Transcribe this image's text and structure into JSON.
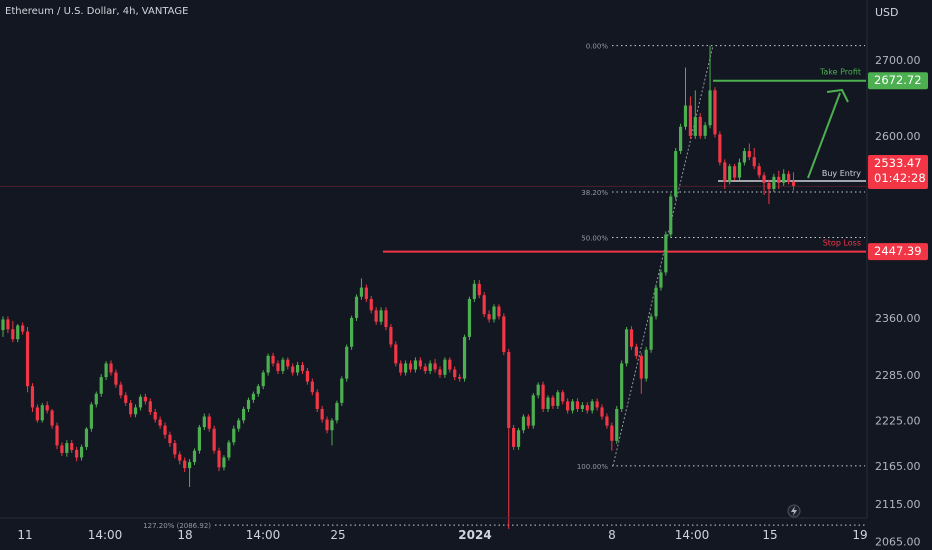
{
  "header": {
    "symbol_line": "Ethereum / U.S. Dollar, 4h, VANTAGE"
  },
  "price_axis": {
    "currency": "USD"
  },
  "chart_data": {
    "type": "candlestick",
    "ylim": [
      2010,
      2760
    ],
    "y_ticks": [
      "2700.00",
      "2600.00",
      "2360.00",
      "2285.00",
      "2225.00",
      "2165.00",
      "2115.00",
      "2065.00"
    ],
    "x_ticks": [
      "11",
      "14:00",
      "18",
      "14:00",
      "25",
      "2024",
      "8",
      "14:00",
      "15",
      "19"
    ],
    "colors": {
      "up": "#4caf50",
      "down": "#f23645",
      "background": "#131722",
      "grid_line": "#d1d4dc",
      "current_price": "#f23645",
      "take_profit": "#4caf50",
      "stop_loss": "#f23645",
      "buy_entry": "#d1d4dc"
    },
    "fib_levels": [
      {
        "label": "0.00%",
        "price": 2719
      },
      {
        "label": "38.20%",
        "price": 2526
      },
      {
        "label": "50.00%",
        "price": 2466
      },
      {
        "label": "100.00%",
        "price": 2165
      },
      {
        "label": "127.20% (2086.92)",
        "price": 2086.92
      }
    ],
    "levels": {
      "take_profit": {
        "label": "Take Profit",
        "price": "2672.72",
        "value": 2672.72
      },
      "buy_entry": {
        "label": "Buy Entry",
        "value": 2526
      },
      "stop_loss": {
        "label": "Stop Loss",
        "price": "2447.39",
        "value": 2447.39
      },
      "current": {
        "price": "2533.47",
        "countdown": "01:42:28",
        "value": 2533.47
      }
    },
    "candles": [
      [
        2344,
        2358,
        2335,
        2362
      ],
      [
        2358,
        2345,
        2340,
        2362
      ],
      [
        2345,
        2332,
        2328,
        2356
      ],
      [
        2332,
        2350,
        2328,
        2352
      ],
      [
        2350,
        2342,
        2338,
        2354
      ],
      [
        2342,
        2270,
        2262,
        2348
      ],
      [
        2270,
        2242,
        2236,
        2274
      ],
      [
        2242,
        2225,
        2222,
        2246
      ],
      [
        2225,
        2245,
        2222,
        2248
      ],
      [
        2245,
        2238,
        2234,
        2250
      ],
      [
        2238,
        2218,
        2214,
        2240
      ],
      [
        2218,
        2192,
        2187,
        2222
      ],
      [
        2192,
        2182,
        2178,
        2196
      ],
      [
        2182,
        2195,
        2177,
        2199
      ],
      [
        2195,
        2186,
        2182,
        2199
      ],
      [
        2186,
        2176,
        2171,
        2190
      ],
      [
        2176,
        2190,
        2172,
        2193
      ],
      [
        2190,
        2214,
        2186,
        2216
      ],
      [
        2214,
        2246,
        2210,
        2249
      ],
      [
        2246,
        2260,
        2242,
        2263
      ],
      [
        2260,
        2282,
        2256,
        2286
      ],
      [
        2282,
        2300,
        2278,
        2303
      ],
      [
        2300,
        2288,
        2284,
        2304
      ],
      [
        2288,
        2272,
        2268,
        2292
      ],
      [
        2272,
        2258,
        2254,
        2276
      ],
      [
        2258,
        2248,
        2244,
        2262
      ],
      [
        2248,
        2233,
        2229,
        2252
      ],
      [
        2233,
        2242,
        2229,
        2246
      ],
      [
        2242,
        2256,
        2238,
        2259
      ],
      [
        2256,
        2250,
        2246,
        2260
      ],
      [
        2250,
        2236,
        2232,
        2254
      ],
      [
        2236,
        2226,
        2222,
        2240
      ],
      [
        2226,
        2218,
        2214,
        2230
      ],
      [
        2218,
        2206,
        2201,
        2222
      ],
      [
        2206,
        2195,
        2190,
        2210
      ],
      [
        2195,
        2180,
        2175,
        2199
      ],
      [
        2180,
        2172,
        2167,
        2184
      ],
      [
        2172,
        2162,
        2157,
        2176
      ],
      [
        2162,
        2170,
        2137,
        2174
      ],
      [
        2170,
        2185,
        2166,
        2188
      ],
      [
        2185,
        2216,
        2181,
        2219
      ],
      [
        2216,
        2230,
        2212,
        2234
      ],
      [
        2230,
        2214,
        2210,
        2234
      ],
      [
        2214,
        2185,
        2181,
        2218
      ],
      [
        2185,
        2163,
        2158,
        2189
      ],
      [
        2163,
        2176,
        2159,
        2179
      ],
      [
        2176,
        2196,
        2172,
        2199
      ],
      [
        2196,
        2214,
        2192,
        2218
      ],
      [
        2214,
        2225,
        2210,
        2228
      ],
      [
        2225,
        2240,
        2221,
        2243
      ],
      [
        2240,
        2252,
        2236,
        2255
      ],
      [
        2252,
        2260,
        2248,
        2263
      ],
      [
        2260,
        2270,
        2256,
        2273
      ],
      [
        2270,
        2288,
        2266,
        2291
      ],
      [
        2288,
        2310,
        2284,
        2313
      ],
      [
        2310,
        2300,
        2296,
        2314
      ],
      [
        2300,
        2290,
        2286,
        2304
      ],
      [
        2290,
        2305,
        2286,
        2308
      ],
      [
        2305,
        2296,
        2292,
        2308
      ],
      [
        2296,
        2288,
        2284,
        2300
      ],
      [
        2288,
        2298,
        2284,
        2302
      ],
      [
        2298,
        2290,
        2286,
        2302
      ],
      [
        2290,
        2276,
        2272,
        2294
      ],
      [
        2276,
        2262,
        2258,
        2280
      ],
      [
        2262,
        2240,
        2236,
        2266
      ],
      [
        2240,
        2226,
        2222,
        2244
      ],
      [
        2226,
        2212,
        2208,
        2230
      ],
      [
        2212,
        2225,
        2192,
        2228
      ],
      [
        2225,
        2248,
        2221,
        2251
      ],
      [
        2248,
        2280,
        2244,
        2283
      ],
      [
        2280,
        2322,
        2276,
        2325
      ],
      [
        2322,
        2360,
        2318,
        2363
      ],
      [
        2360,
        2388,
        2356,
        2391
      ],
      [
        2388,
        2400,
        2384,
        2412
      ],
      [
        2400,
        2385,
        2381,
        2404
      ],
      [
        2385,
        2370,
        2366,
        2389
      ],
      [
        2370,
        2355,
        2351,
        2374
      ],
      [
        2355,
        2370,
        2351,
        2374
      ],
      [
        2370,
        2348,
        2344,
        2374
      ],
      [
        2348,
        2325,
        2321,
        2352
      ],
      [
        2325,
        2300,
        2296,
        2329
      ],
      [
        2300,
        2288,
        2284,
        2304
      ],
      [
        2288,
        2300,
        2284,
        2304
      ],
      [
        2300,
        2292,
        2288,
        2304
      ],
      [
        2292,
        2304,
        2288,
        2308
      ],
      [
        2304,
        2296,
        2292,
        2308
      ],
      [
        2296,
        2290,
        2286,
        2300
      ],
      [
        2290,
        2300,
        2286,
        2304
      ],
      [
        2300,
        2292,
        2288,
        2306
      ],
      [
        2292,
        2285,
        2281,
        2296
      ],
      [
        2285,
        2305,
        2281,
        2308
      ],
      [
        2305,
        2292,
        2288,
        2308
      ],
      [
        2292,
        2282,
        2278,
        2296
      ],
      [
        2282,
        2280,
        2276,
        2286
      ],
      [
        2280,
        2335,
        2276,
        2338
      ],
      [
        2335,
        2385,
        2331,
        2388
      ],
      [
        2385,
        2405,
        2381,
        2410
      ],
      [
        2405,
        2390,
        2386,
        2410
      ],
      [
        2390,
        2365,
        2361,
        2394
      ],
      [
        2365,
        2358,
        2354,
        2370
      ],
      [
        2358,
        2375,
        2354,
        2378
      ],
      [
        2375,
        2362,
        2358,
        2378
      ],
      [
        2362,
        2315,
        2311,
        2366
      ],
      [
        2315,
        2215,
        2082,
        2319
      ],
      [
        2215,
        2190,
        2186,
        2219
      ],
      [
        2190,
        2212,
        2186,
        2215
      ],
      [
        2212,
        2230,
        2208,
        2233
      ],
      [
        2230,
        2218,
        2214,
        2233
      ],
      [
        2218,
        2258,
        2214,
        2261
      ],
      [
        2258,
        2272,
        2254,
        2275
      ],
      [
        2272,
        2240,
        2236,
        2276
      ],
      [
        2240,
        2255,
        2236,
        2258
      ],
      [
        2255,
        2244,
        2240,
        2258
      ],
      [
        2244,
        2262,
        2240,
        2265
      ],
      [
        2262,
        2250,
        2246,
        2265
      ],
      [
        2250,
        2238,
        2234,
        2254
      ],
      [
        2238,
        2250,
        2234,
        2253
      ],
      [
        2250,
        2240,
        2236,
        2254
      ],
      [
        2240,
        2245,
        2236,
        2249
      ],
      [
        2245,
        2238,
        2234,
        2249
      ],
      [
        2238,
        2250,
        2234,
        2253
      ],
      [
        2250,
        2242,
        2238,
        2254
      ],
      [
        2242,
        2230,
        2226,
        2246
      ],
      [
        2230,
        2218,
        2214,
        2234
      ],
      [
        2218,
        2198,
        2185,
        2222
      ],
      [
        2198,
        2240,
        2194,
        2244
      ],
      [
        2240,
        2300,
        2236,
        2304
      ],
      [
        2300,
        2345,
        2296,
        2348
      ],
      [
        2345,
        2322,
        2318,
        2349
      ],
      [
        2322,
        2310,
        2306,
        2326
      ],
      [
        2310,
        2280,
        2260,
        2314
      ],
      [
        2280,
        2318,
        2276,
        2322
      ],
      [
        2318,
        2362,
        2314,
        2366
      ],
      [
        2362,
        2400,
        2358,
        2404
      ],
      [
        2400,
        2420,
        2396,
        2424
      ],
      [
        2420,
        2470,
        2416,
        2474
      ],
      [
        2470,
        2520,
        2466,
        2524
      ],
      [
        2520,
        2580,
        2516,
        2584
      ],
      [
        2580,
        2612,
        2576,
        2616
      ],
      [
        2612,
        2640,
        2608,
        2690
      ],
      [
        2640,
        2600,
        2596,
        2652
      ],
      [
        2600,
        2625,
        2596,
        2660
      ],
      [
        2625,
        2600,
        2596,
        2630
      ],
      [
        2600,
        2614,
        2596,
        2618
      ],
      [
        2614,
        2660,
        2610,
        2719
      ],
      [
        2660,
        2602,
        2598,
        2664
      ],
      [
        2602,
        2565,
        2561,
        2606
      ],
      [
        2565,
        2540,
        2530,
        2569
      ],
      [
        2540,
        2560,
        2536,
        2563
      ],
      [
        2560,
        2545,
        2541,
        2563
      ],
      [
        2545,
        2565,
        2541,
        2570
      ],
      [
        2565,
        2580,
        2561,
        2584
      ],
      [
        2580,
        2572,
        2568,
        2590
      ],
      [
        2572,
        2560,
        2556,
        2584
      ],
      [
        2560,
        2548,
        2544,
        2564
      ],
      [
        2548,
        2538,
        2522,
        2552
      ],
      [
        2538,
        2530,
        2510,
        2542
      ],
      [
        2530,
        2546,
        2526,
        2550
      ],
      [
        2546,
        2538,
        2530,
        2554
      ],
      [
        2538,
        2550,
        2534,
        2556
      ],
      [
        2550,
        2540,
        2536,
        2554
      ],
      [
        2540,
        2534,
        2528,
        2552
      ]
    ]
  }
}
